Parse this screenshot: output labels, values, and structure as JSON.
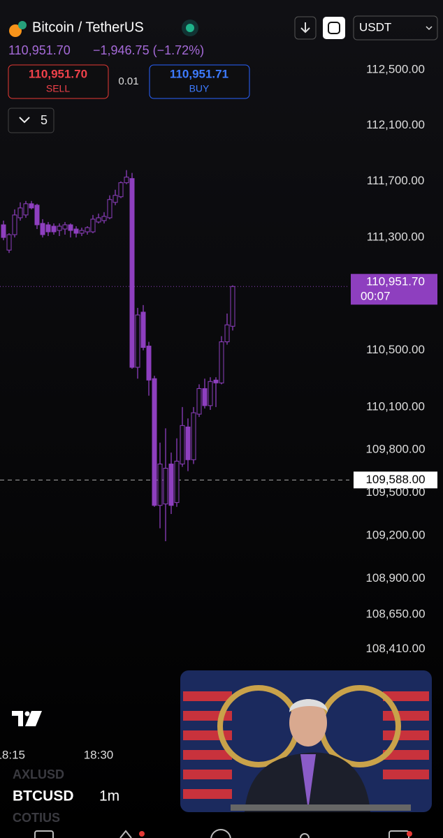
{
  "header": {
    "pair": "Bitcoin / TetherUS",
    "price": "110,951.70",
    "change": "−1,946.75 (−1.72%)",
    "sell_price": "110,951.70",
    "sell": "SELL",
    "spread": "0.01",
    "buy_price": "110,951.71",
    "buy": "BUY",
    "interval_count": "5",
    "currency": "USDT"
  },
  "chart_data": {
    "type": "candlestick",
    "log_scale": true,
    "color": "#8e3fbf",
    "ylim": [
      107780,
      112700
    ],
    "yticks": [
      {
        "value": 112500,
        "label": "112,500.00"
      },
      {
        "value": 112100,
        "label": "112,100.00"
      },
      {
        "value": 111700,
        "label": "111,700.00"
      },
      {
        "value": 111300,
        "label": "111,300.00"
      },
      {
        "value": 110500,
        "label": "110,500.00"
      },
      {
        "value": 110100,
        "label": "110,100.00"
      },
      {
        "value": 109800,
        "label": "109,800.00"
      },
      {
        "value": 109500,
        "label": "109,500.00"
      },
      {
        "value": 109200,
        "label": "109,200.00"
      },
      {
        "value": 108900,
        "label": "108,900.00"
      },
      {
        "value": 108650,
        "label": "108,650.00"
      },
      {
        "value": 108410,
        "label": "108,410.00"
      }
    ],
    "xtick_labels": [
      "18:15",
      "18:30"
    ],
    "open": [
      111390,
      111210,
      111320,
      111440,
      111460,
      111540,
      111530,
      111400,
      111390,
      111380,
      111350,
      111360,
      111390,
      111360,
      111330,
      111340,
      111340,
      111410,
      111420,
      111440,
      111550,
      111590,
      111690,
      111720,
      110380,
      110770,
      110530,
      110300,
      109410,
      109420,
      109700,
      109430,
      109700,
      109960,
      109730,
      110050,
      110230,
      110110,
      110290,
      110270,
      110560,
      110670
    ],
    "high": [
      111420,
      111330,
      111500,
      111550,
      111560,
      111560,
      111540,
      111430,
      111410,
      111400,
      111400,
      111410,
      111400,
      111380,
      111370,
      111380,
      111460,
      111470,
      111480,
      111600,
      111640,
      111700,
      111780,
      111760,
      110800,
      110820,
      110560,
      110320,
      109850,
      109950,
      109780,
      109880,
      110100,
      110020,
      110100,
      110260,
      110300,
      110310,
      110310,
      110600,
      110760,
      110960
    ],
    "low": [
      111280,
      111190,
      111300,
      111420,
      111440,
      111500,
      111360,
      111300,
      111310,
      111320,
      111310,
      111320,
      111300,
      111300,
      111310,
      111320,
      111330,
      111400,
      111400,
      111430,
      111530,
      111580,
      111680,
      110370,
      110300,
      110500,
      110180,
      109400,
      109250,
      109160,
      109350,
      109400,
      109680,
      109650,
      109700,
      110030,
      110090,
      110080,
      110100,
      110260,
      110540,
      110640
    ],
    "close": [
      111300,
      111320,
      111460,
      111510,
      111540,
      111510,
      111390,
      111320,
      111340,
      111340,
      111380,
      111390,
      111350,
      111330,
      111350,
      111370,
      111430,
      111440,
      111450,
      111570,
      111600,
      111690,
      111730,
      110380,
      110750,
      110520,
      110290,
      109410,
      109700,
      109670,
      109410,
      109720,
      109970,
      109730,
      110060,
      110230,
      110110,
      110280,
      110270,
      110560,
      110680,
      110951.7
    ],
    "last_price": {
      "value": 110951.7,
      "label": "110,951.70"
    },
    "countdown": "00:07",
    "marker_line": {
      "value": 109588,
      "label": "109,588.00"
    }
  },
  "watchlist": {
    "above": "AXLUSD",
    "symbol": "BTCUSD",
    "interval": "1m",
    "below": "COTIUS"
  }
}
